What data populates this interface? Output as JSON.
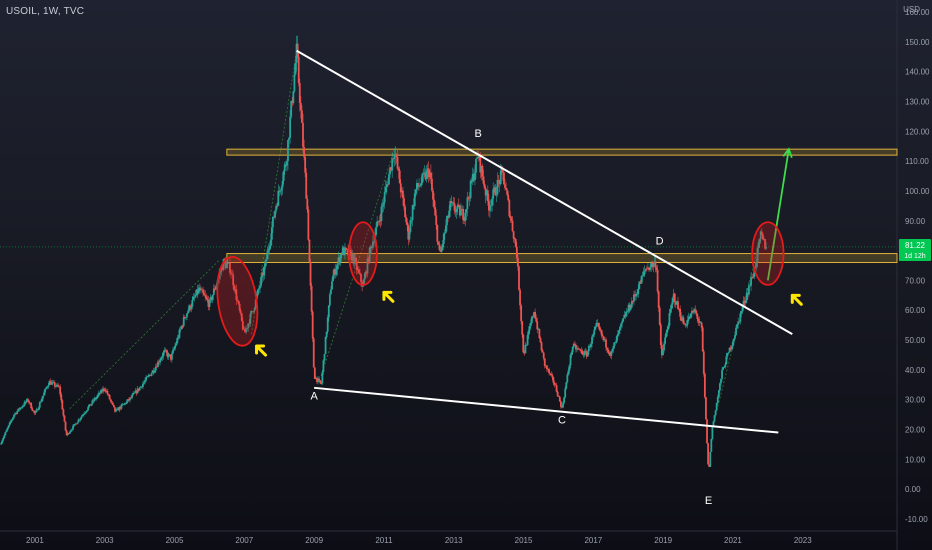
{
  "header": {
    "symbol": "USOIL",
    "interval": "1W",
    "source": "TVC",
    "currency": "USD"
  },
  "chart_data": {
    "type": "line",
    "title": "",
    "y_ticks": [
      -10,
      0,
      10,
      20,
      30,
      40,
      50,
      60,
      70,
      80,
      90,
      100,
      110,
      120,
      130,
      140,
      150,
      160
    ],
    "x_ticks": [
      "2001",
      "2003",
      "2005",
      "2007",
      "2009",
      "2011",
      "2013",
      "2015",
      "2017",
      "2019",
      "2021",
      "2023"
    ],
    "ylim": [
      -14,
      164
    ],
    "xlim": [
      2000.0,
      2025.7
    ],
    "grid": false,
    "series": [
      {
        "values": [
          [
            2000.0,
            15
          ],
          [
            2000.4,
            25
          ],
          [
            2000.8,
            30
          ],
          [
            2001.0,
            25
          ],
          [
            2001.4,
            36
          ],
          [
            2001.7,
            34
          ],
          [
            2001.9,
            18
          ],
          [
            2002.3,
            24
          ],
          [
            2002.7,
            30
          ],
          [
            2003.0,
            34
          ],
          [
            2003.3,
            26
          ],
          [
            2003.7,
            30
          ],
          [
            2004.0,
            34
          ],
          [
            2004.4,
            40
          ],
          [
            2004.7,
            46
          ],
          [
            2004.9,
            44
          ],
          [
            2005.3,
            58
          ],
          [
            2005.7,
            67
          ],
          [
            2006.0,
            62
          ],
          [
            2006.4,
            76
          ],
          [
            2006.6,
            74
          ],
          [
            2007.0,
            52
          ],
          [
            2007.3,
            62
          ],
          [
            2007.6,
            75
          ],
          [
            2007.9,
            95
          ],
          [
            2008.2,
            110
          ],
          [
            2008.5,
            147
          ],
          [
            2008.8,
            95
          ],
          [
            2009.0,
            38
          ],
          [
            2009.2,
            35
          ],
          [
            2009.5,
            70
          ],
          [
            2009.8,
            80
          ],
          [
            2010.1,
            78
          ],
          [
            2010.4,
            68
          ],
          [
            2010.6,
            80
          ],
          [
            2010.9,
            92
          ],
          [
            2011.3,
            114
          ],
          [
            2011.7,
            85
          ],
          [
            2011.9,
            100
          ],
          [
            2012.3,
            107
          ],
          [
            2012.6,
            78
          ],
          [
            2012.9,
            95
          ],
          [
            2013.3,
            92
          ],
          [
            2013.7,
            112
          ],
          [
            2014.0,
            95
          ],
          [
            2014.4,
            106
          ],
          [
            2014.8,
            80
          ],
          [
            2015.0,
            45
          ],
          [
            2015.3,
            60
          ],
          [
            2015.6,
            42
          ],
          [
            2015.9,
            35
          ],
          [
            2016.1,
            27
          ],
          [
            2016.4,
            48
          ],
          [
            2016.8,
            45
          ],
          [
            2017.1,
            55
          ],
          [
            2017.5,
            45
          ],
          [
            2017.9,
            58
          ],
          [
            2018.2,
            65
          ],
          [
            2018.5,
            74
          ],
          [
            2018.8,
            76
          ],
          [
            2018.95,
            44
          ],
          [
            2019.3,
            65
          ],
          [
            2019.6,
            55
          ],
          [
            2019.9,
            60
          ],
          [
            2020.1,
            54
          ],
          [
            2020.3,
            5
          ],
          [
            2020.4,
            20
          ],
          [
            2020.7,
            40
          ],
          [
            2021.0,
            50
          ],
          [
            2021.3,
            62
          ],
          [
            2021.6,
            73
          ],
          [
            2021.8,
            85
          ],
          [
            2021.95,
            81
          ]
        ]
      }
    ],
    "last_price": "81.22",
    "countdown": "1d 12h",
    "horizontal_levels": [
      {
        "name": "upper-zone",
        "low": 112,
        "high": 114
      },
      {
        "name": "lower-zone",
        "low": 76,
        "high": 79
      }
    ],
    "trendlines": [
      {
        "name": "upper-trendline",
        "from": [
          2008.5,
          147
        ],
        "to": [
          2022.7,
          52
        ]
      },
      {
        "name": "lower-trendline",
        "from": [
          2009.0,
          34
        ],
        "to": [
          2022.3,
          19
        ]
      }
    ],
    "projection": {
      "from": [
        2022.0,
        70
      ],
      "to": [
        2022.6,
        114
      ]
    },
    "point_labels": [
      {
        "text": "A",
        "x": 2009.0,
        "y": 30
      },
      {
        "text": "B",
        "x": 2013.7,
        "y": 118
      },
      {
        "text": "C",
        "x": 2016.1,
        "y": 22
      },
      {
        "text": "D",
        "x": 2018.9,
        "y": 82
      },
      {
        "text": "E",
        "x": 2020.3,
        "y": -5
      }
    ],
    "highlight_ellipses": [
      {
        "cx": 2006.8,
        "cy": 63,
        "rx": 0.55,
        "ry": 15
      },
      {
        "cx": 2010.4,
        "cy": 79,
        "rx": 0.4,
        "ry": 10.5
      },
      {
        "cx": 2022.0,
        "cy": 79,
        "rx": 0.45,
        "ry": 10.5
      }
    ],
    "arrow_markers": [
      {
        "x": 2007.35,
        "y": 48
      },
      {
        "x": 2011.0,
        "y": 66
      },
      {
        "x": 2022.7,
        "y": 65
      }
    ],
    "colors": {
      "up": "#26a69a",
      "down": "#ef5350",
      "zone_fill": "#b5952a",
      "zone_line": "#e0b23a",
      "trend": "#ffffff",
      "projection": "#3ddc4c",
      "ellipse": "#e31b1b",
      "arrow": "#ffe600",
      "price_label": "#00c853",
      "guide": "#2e7d32"
    }
  }
}
